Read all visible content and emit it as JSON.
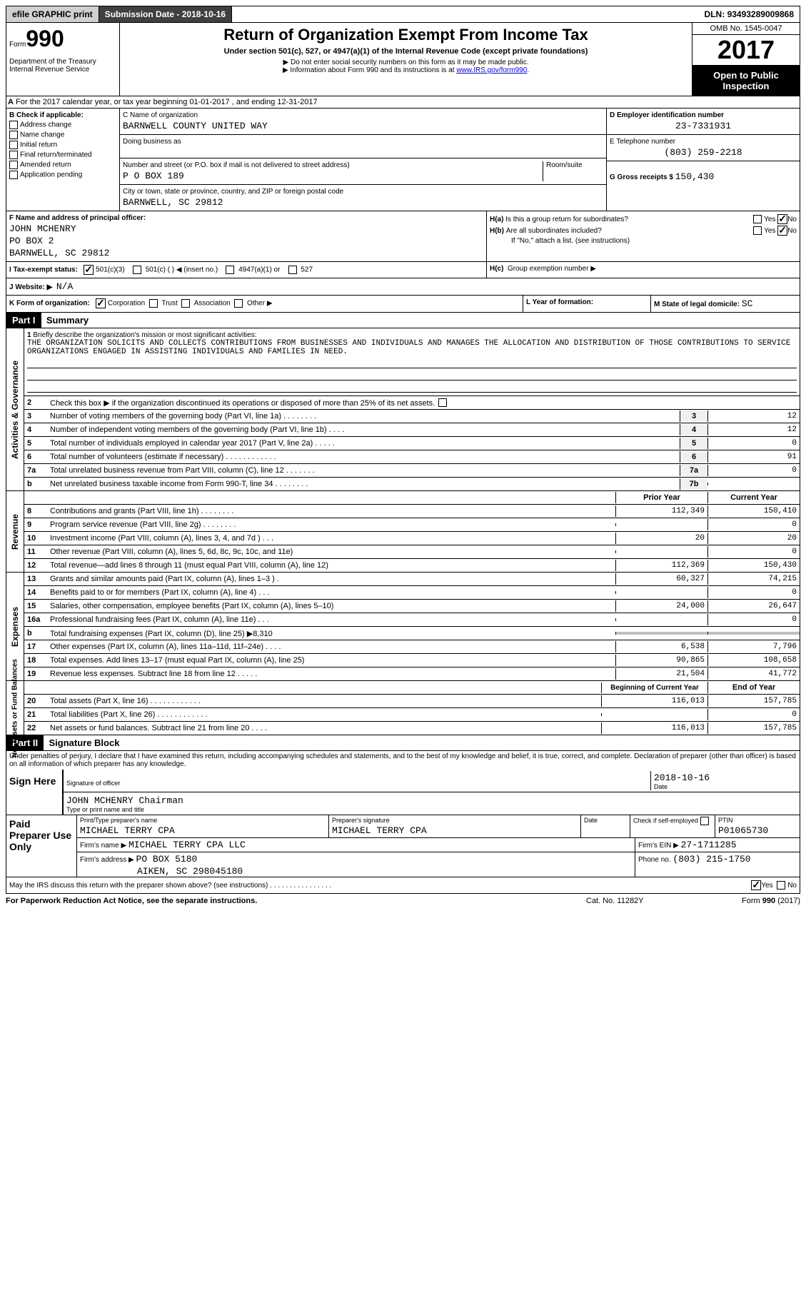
{
  "topbar": {
    "efile": "efile GRAPHIC print",
    "submission_label": "Submission Date -",
    "submission_date": "2018-10-16",
    "dln_label": "DLN:",
    "dln": "93493289009868"
  },
  "header": {
    "form_label": "Form",
    "form_number": "990",
    "dept1": "Department of the Treasury",
    "dept2": "Internal Revenue Service",
    "title": "Return of Organization Exempt From Income Tax",
    "subtitle": "Under section 501(c), 527, or 4947(a)(1) of the Internal Revenue Code (except private foundations)",
    "instruct1": "▶ Do not enter social security numbers on this form as it may be made public.",
    "instruct2": "▶ Information about Form 990 and its instructions is at",
    "instruct_link": "www.IRS.gov/form990",
    "omb": "OMB No. 1545-0047",
    "year": "2017",
    "open": "Open to Public Inspection"
  },
  "sectionA": {
    "text": "For the 2017 calendar year, or tax year beginning 01-01-2017   , and ending 12-31-2017",
    "label": "A"
  },
  "colB": {
    "header": "B Check if applicable:",
    "items": [
      "Address change",
      "Name change",
      "Initial return",
      "Final return/terminated",
      "Amended return",
      "Application pending"
    ]
  },
  "colC": {
    "name_label": "C Name of organization",
    "name": "BARNWELL COUNTY UNITED WAY",
    "dba_label": "Doing business as",
    "dba": "",
    "addr_label": "Number and street (or P.O. box if mail is not delivered to street address)",
    "room_label": "Room/suite",
    "addr": "P O BOX 189",
    "city_label": "City or town, state or province, country, and ZIP or foreign postal code",
    "city": "BARNWELL, SC  29812"
  },
  "colD": {
    "ein_label": "D Employer identification number",
    "ein": "23-7331931",
    "phone_label": "E Telephone number",
    "phone": "(803) 259-2218",
    "gross_label": "G Gross receipts $",
    "gross": "150,430"
  },
  "sectionF": {
    "label": "F  Name and address of principal officer:",
    "name": "JOHN MCHENRY",
    "addr1": "PO BOX 2",
    "addr2": "BARNWELL, SC  29812"
  },
  "sectionH": {
    "ha_label": "H(a)",
    "ha_text": "Is this a group return for subordinates?",
    "hb_label": "H(b)",
    "hb_text": "Are all subordinates included?",
    "hb_note": "If \"No,\" attach a list. (see instructions)",
    "hc_label": "H(c)",
    "hc_text": "Group exemption number ▶",
    "yes": "Yes",
    "no": "No"
  },
  "sectionI": {
    "label": "I  Tax-exempt status:",
    "opt1": "501(c)(3)",
    "opt2": "501(c) (   ) ◀ (insert no.)",
    "opt3": "4947(a)(1) or",
    "opt4": "527"
  },
  "sectionJ": {
    "label": "J  Website: ▶",
    "value": "N/A"
  },
  "sectionK": {
    "label": "K Form of organization:",
    "opts": [
      "Corporation",
      "Trust",
      "Association",
      "Other ▶"
    ]
  },
  "sectionL": {
    "label": "L Year of formation:",
    "value": ""
  },
  "sectionM": {
    "label": "M State of legal domicile:",
    "value": "SC"
  },
  "part1": {
    "header": "Part I",
    "title": "Summary",
    "vlabels": [
      "Activities & Governance",
      "Revenue",
      "Expenses",
      "Net Assets or Fund Balances"
    ],
    "line1_label": "1",
    "line1_text": "Briefly describe the organization's mission or most significant activities:",
    "mission": "THE ORGANIZATION SOLICITS AND COLLECTS CONTRIBUTIONS FROM BUSINESSES AND INDIVIDUALS AND MANAGES THE ALLOCATION AND DISTRIBUTION OF THOSE CONTRIBUTIONS TO SERVICE ORGANIZATIONS ENGAGED IN ASSISTING INDIVIDUALS AND FAMILIES IN NEED.",
    "line2_label": "2",
    "line2_text": "Check this box ▶      if the organization discontinued its operations or disposed of more than 25% of its net assets.",
    "gov_lines": [
      {
        "n": "3",
        "d": "Number of voting members of the governing body (Part VI, line 1a)   .    .    .    .    .    .    .    .",
        "l": "3",
        "v": "12"
      },
      {
        "n": "4",
        "d": "Number of independent voting members of the governing body (Part VI, line 1b)   .    .    .    .",
        "l": "4",
        "v": "12"
      },
      {
        "n": "5",
        "d": "Total number of individuals employed in calendar year 2017 (Part V, line 2a)   .    .    .    .    .",
        "l": "5",
        "v": "0"
      },
      {
        "n": "6",
        "d": "Total number of volunteers (estimate if necessary)   .    .    .    .    .    .    .    .    .    .    .    .",
        "l": "6",
        "v": "91"
      },
      {
        "n": "7a",
        "d": "Total unrelated business revenue from Part VIII, column (C), line 12   .    .    .    .    .    .    .",
        "l": "7a",
        "v": "0"
      },
      {
        "n": "b",
        "d": "Net unrelated business taxable income from Form 990-T, line 34   .    .    .    .    .    .    .    .",
        "l": "7b",
        "v": ""
      }
    ],
    "col_hdrs": {
      "prior": "Prior Year",
      "current": "Current Year",
      "begin": "Beginning of Current Year",
      "end": "End of Year"
    },
    "rev_lines": [
      {
        "n": "8",
        "d": "Contributions and grants (Part VIII, line 1h)   .    .    .    .    .    .    .    .",
        "p": "112,349",
        "c": "150,410"
      },
      {
        "n": "9",
        "d": "Program service revenue (Part VIII, line 2g)   .    .    .    .    .    .    .    .",
        "p": "",
        "c": "0"
      },
      {
        "n": "10",
        "d": "Investment income (Part VIII, column (A), lines 3, 4, and 7d )   .    .    .",
        "p": "20",
        "c": "20"
      },
      {
        "n": "11",
        "d": "Other revenue (Part VIII, column (A), lines 5, 6d, 8c, 9c, 10c, and 11e)",
        "p": "",
        "c": "0"
      },
      {
        "n": "12",
        "d": "Total revenue—add lines 8 through 11 (must equal Part VIII, column (A), line 12)",
        "p": "112,369",
        "c": "150,430"
      }
    ],
    "exp_lines": [
      {
        "n": "13",
        "d": "Grants and similar amounts paid (Part IX, column (A), lines 1–3 )  .",
        "p": "60,327",
        "c": "74,215"
      },
      {
        "n": "14",
        "d": "Benefits paid to or for members (Part IX, column (A), line 4)  .    .    .",
        "p": "",
        "c": "0"
      },
      {
        "n": "15",
        "d": "Salaries, other compensation, employee benefits (Part IX, column (A), lines 5–10)",
        "p": "24,000",
        "c": "26,647"
      },
      {
        "n": "16a",
        "d": "Professional fundraising fees (Part IX, column (A), line 11e)   .    .    .",
        "p": "",
        "c": "0"
      },
      {
        "n": "b",
        "d": "Total fundraising expenses (Part IX, column (D), line 25) ▶8,310",
        "p": "shade",
        "c": "shade"
      },
      {
        "n": "17",
        "d": "Other expenses (Part IX, column (A), lines 11a–11d, 11f–24e)   .    .    .    .",
        "p": "6,538",
        "c": "7,796"
      },
      {
        "n": "18",
        "d": "Total expenses. Add lines 13–17 (must equal Part IX, column (A), line 25)",
        "p": "90,865",
        "c": "108,658"
      },
      {
        "n": "19",
        "d": "Revenue less expenses. Subtract line 18 from line 12   .    .    .    .    .",
        "p": "21,504",
        "c": "41,772"
      }
    ],
    "net_lines": [
      {
        "n": "20",
        "d": "Total assets (Part X, line 16)   .    .    .    .    .    .    .    .    .    .    .    .",
        "p": "116,013",
        "c": "157,785"
      },
      {
        "n": "21",
        "d": "Total liabilities (Part X, line 26)  .    .    .    .    .    .    .    .    .    .    .    .",
        "p": "",
        "c": "0"
      },
      {
        "n": "22",
        "d": "Net assets or fund balances. Subtract line 21 from line 20  .    .    .    .",
        "p": "116,013",
        "c": "157,785"
      }
    ]
  },
  "part2": {
    "header": "Part II",
    "title": "Signature Block",
    "declaration": "Under penalties of perjury, I declare that I have examined this return, including accompanying schedules and statements, and to the best of my knowledge and belief, it is true, correct, and complete. Declaration of preparer (other than officer) is based on all information of which preparer has any knowledge.",
    "sign_here": "Sign Here",
    "sig_officer": "Signature of officer",
    "sig_date": "2018-10-16",
    "date_label": "Date",
    "officer_name": "JOHN MCHENRY Chairman",
    "type_label": "Type or print name and title",
    "paid_prep": "Paid Preparer Use Only",
    "prep_name_label": "Print/Type preparer's name",
    "prep_name": "MICHAEL TERRY CPA",
    "prep_sig_label": "Preparer's signature",
    "prep_sig": "MICHAEL TERRY CPA",
    "prep_date_label": "Date",
    "check_if": "Check        if self-employed",
    "ptin_label": "PTIN",
    "ptin": "P01065730",
    "firm_name_label": "Firm's name    ▶",
    "firm_name": "MICHAEL TERRY CPA LLC",
    "firm_ein_label": "Firm's EIN ▶",
    "firm_ein": "27-1711285",
    "firm_addr_label": "Firm's address ▶",
    "firm_addr1": "PO BOX 5180",
    "firm_addr2": "AIKEN, SC 298045180",
    "firm_phone_label": "Phone no.",
    "firm_phone": "(803) 215-1750",
    "discuss": "May the IRS discuss this return with the preparer shown above? (see instructions)    .    .    .    .    .    .    .    .    .    .    .    .    .    .    .    .",
    "yes": "Yes",
    "no": "No"
  },
  "footer": {
    "left": "For Paperwork Reduction Act Notice, see the separate instructions.",
    "mid": "Cat. No. 11282Y",
    "right": "Form 990 (2017)"
  }
}
